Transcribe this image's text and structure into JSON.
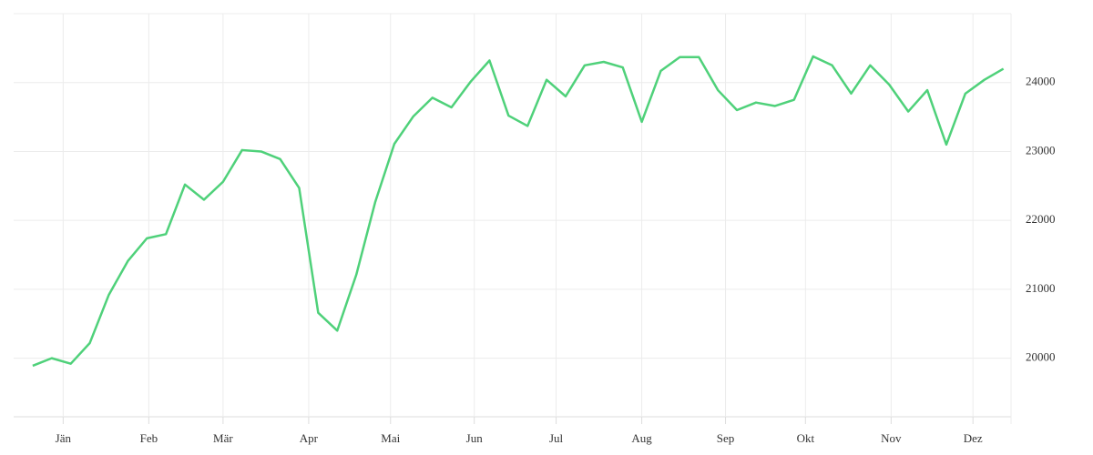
{
  "chart_data": {
    "type": "line",
    "x": [
      1,
      2,
      3,
      4,
      5,
      6,
      7,
      8,
      9,
      10,
      11,
      12,
      13,
      14,
      15,
      16,
      17,
      18,
      19,
      20,
      21,
      22,
      23,
      24,
      25,
      26,
      27,
      28,
      29,
      30,
      31,
      32,
      33,
      34,
      35,
      36,
      37,
      38,
      39,
      40,
      41,
      42,
      43,
      44,
      45,
      46,
      47,
      48,
      49,
      50,
      51,
      52
    ],
    "series": [
      {
        "color": "#4fd17a",
        "values": [
          19890,
          20000,
          19920,
          20220,
          20920,
          21410,
          21740,
          21800,
          22520,
          22300,
          22560,
          23020,
          23000,
          22890,
          22470,
          20660,
          20400,
          21210,
          22270,
          23110,
          23510,
          23780,
          23640,
          24010,
          24320,
          23520,
          23370,
          24040,
          23800,
          24250,
          24300,
          24220,
          23430,
          24170,
          24370,
          24370,
          23890,
          23600,
          23710,
          23660,
          23750,
          24380,
          24250,
          23840,
          24250,
          23970,
          23580,
          23890,
          23100,
          23840,
          24040,
          24200
        ]
      }
    ],
    "xlim": [
      0,
      52.4
    ],
    "xticks": [
      {
        "value": 2.6,
        "label": "Jän"
      },
      {
        "value": 7.1,
        "label": "Feb"
      },
      {
        "value": 11.0,
        "label": "Mär"
      },
      {
        "value": 15.5,
        "label": "Apr"
      },
      {
        "value": 19.8,
        "label": "Mai"
      },
      {
        "value": 24.2,
        "label": "Jun"
      },
      {
        "value": 28.5,
        "label": "Jul"
      },
      {
        "value": 33.0,
        "label": "Aug"
      },
      {
        "value": 37.4,
        "label": "Sep"
      },
      {
        "value": 41.6,
        "label": "Okt"
      },
      {
        "value": 46.1,
        "label": "Nov"
      },
      {
        "value": 50.4,
        "label": "Dez"
      }
    ],
    "ylim": [
      19150,
      25000
    ],
    "yticks": [
      20000,
      21000,
      22000,
      23000,
      24000
    ],
    "grid": true
  }
}
